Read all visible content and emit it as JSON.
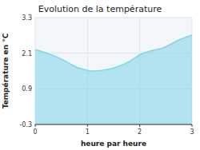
{
  "chart_data": {
    "type": "area",
    "title": "Evolution de la température",
    "x_label": "heure par heure",
    "y_label": "Température en °C",
    "x": [
      0,
      0.1,
      0.2,
      0.3,
      0.4,
      0.5,
      0.6,
      0.7,
      0.8,
      0.9,
      1.0,
      1.05,
      1.1,
      1.2,
      1.3,
      1.4,
      1.5,
      1.6,
      1.7,
      1.8,
      1.9,
      2.0,
      2.1,
      2.2,
      2.3,
      2.4,
      2.5,
      2.6,
      2.7,
      2.8,
      2.9,
      3.0
    ],
    "values": [
      2.22,
      2.17,
      2.11,
      2.05,
      1.98,
      1.9,
      1.81,
      1.71,
      1.62,
      1.57,
      1.52,
      1.5,
      1.5,
      1.51,
      1.53,
      1.56,
      1.6,
      1.66,
      1.73,
      1.82,
      1.93,
      2.05,
      2.12,
      2.17,
      2.21,
      2.25,
      2.32,
      2.41,
      2.5,
      2.58,
      2.65,
      2.72
    ],
    "color": "#7fd4ea",
    "xlim": [
      0,
      3
    ],
    "ylim": [
      -0.3,
      3.3
    ],
    "xticks": [
      0,
      1,
      2,
      3
    ],
    "yticks": [
      -0.3,
      0.9,
      2.1,
      3.3
    ],
    "grid": true
  }
}
